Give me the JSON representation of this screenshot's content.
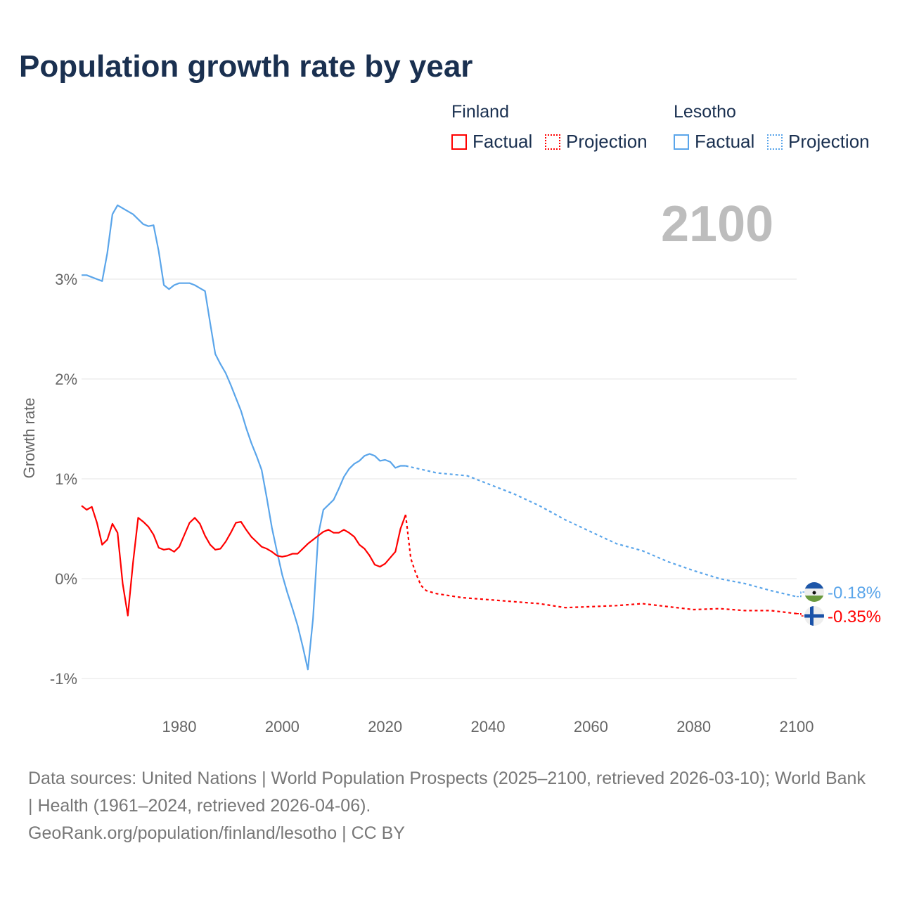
{
  "title": "Population growth rate by year",
  "legend": {
    "groups": [
      {
        "name": "Finland",
        "color": "#ff0000",
        "items": [
          "Factual",
          "Projection"
        ]
      },
      {
        "name": "Lesotho",
        "color": "#5aa5ea",
        "items": [
          "Factual",
          "Projection"
        ]
      }
    ]
  },
  "current_year": "2100",
  "end_labels": {
    "lesotho": "-0.18%",
    "finland": "-0.35%"
  },
  "chart_data": {
    "type": "line",
    "title": "Population growth rate by year",
    "xlabel": "",
    "ylabel": "Growth rate",
    "xlim": [
      1961,
      2100
    ],
    "ylim": [
      -1.3,
      3.9
    ],
    "x_ticks": [
      1980,
      2000,
      2020,
      2040,
      2060,
      2080,
      2100
    ],
    "x_tick_labels": [
      "1980",
      "2000",
      "2020",
      "2040",
      "2060",
      "2080",
      "2100"
    ],
    "y_ticks": [
      -1,
      0,
      1,
      2,
      3
    ],
    "y_tick_labels": [
      "-1%",
      "0%",
      "1%",
      "2%",
      "3%"
    ],
    "grid": true,
    "legend_position": "top-right",
    "series": [
      {
        "name": "Lesotho Factual",
        "color": "#5aa5ea",
        "style": "solid",
        "x_start": 1961,
        "values": [
          3.04,
          3.04,
          3.02,
          3.0,
          2.98,
          3.26,
          3.65,
          3.74,
          3.71,
          3.68,
          3.65,
          3.6,
          3.55,
          3.53,
          3.54,
          3.28,
          2.94,
          2.9,
          2.94,
          2.96,
          2.96,
          2.96,
          2.94,
          2.91,
          2.88,
          2.56,
          2.25,
          2.15,
          2.06,
          1.94,
          1.81,
          1.68,
          1.51,
          1.36,
          1.23,
          1.09,
          0.81,
          0.51,
          0.27,
          0.04,
          -0.14,
          -0.3,
          -0.47,
          -0.68,
          -0.91,
          -0.4,
          0.44,
          0.69,
          0.74,
          0.79,
          0.9,
          1.02,
          1.1,
          1.15,
          1.18,
          1.23,
          1.25,
          1.23,
          1.18,
          1.19,
          1.17,
          1.11,
          1.13,
          1.13
        ]
      },
      {
        "name": "Lesotho Projection",
        "color": "#5aa5ea",
        "style": "dotted",
        "x": [
          2024,
          2030,
          2036,
          2040,
          2045,
          2050,
          2055,
          2060,
          2065,
          2070,
          2075,
          2080,
          2085,
          2090,
          2095,
          2100
        ],
        "values": [
          1.13,
          1.06,
          1.03,
          0.95,
          0.85,
          0.73,
          0.59,
          0.47,
          0.35,
          0.28,
          0.17,
          0.08,
          0.0,
          -0.05,
          -0.12,
          -0.18
        ]
      },
      {
        "name": "Finland Factual",
        "color": "#ff0000",
        "style": "solid",
        "x_start": 1961,
        "values": [
          0.73,
          0.69,
          0.72,
          0.56,
          0.34,
          0.39,
          0.55,
          0.46,
          -0.05,
          -0.37,
          0.16,
          0.61,
          0.57,
          0.52,
          0.44,
          0.31,
          0.29,
          0.3,
          0.27,
          0.32,
          0.44,
          0.56,
          0.61,
          0.55,
          0.43,
          0.34,
          0.29,
          0.3,
          0.37,
          0.46,
          0.56,
          0.57,
          0.49,
          0.42,
          0.37,
          0.32,
          0.3,
          0.27,
          0.23,
          0.22,
          0.23,
          0.25,
          0.25,
          0.3,
          0.35,
          0.39,
          0.43,
          0.47,
          0.49,
          0.46,
          0.46,
          0.49,
          0.46,
          0.42,
          0.34,
          0.3,
          0.23,
          0.14,
          0.12,
          0.15,
          0.21,
          0.27,
          0.5,
          0.64
        ]
      },
      {
        "name": "Finland Projection",
        "color": "#ff0000",
        "style": "dotted",
        "x": [
          2024,
          2025,
          2026,
          2027,
          2028,
          2030,
          2035,
          2040,
          2045,
          2050,
          2055,
          2060,
          2065,
          2070,
          2075,
          2080,
          2085,
          2090,
          2095,
          2100
        ],
        "values": [
          0.64,
          0.2,
          0.05,
          -0.07,
          -0.12,
          -0.15,
          -0.19,
          -0.21,
          -0.23,
          -0.25,
          -0.29,
          -0.28,
          -0.27,
          -0.25,
          -0.28,
          -0.31,
          -0.3,
          -0.32,
          -0.32,
          -0.35
        ]
      }
    ]
  },
  "footer": {
    "sources": "Data sources: United Nations | World Population Prospects (2025–2100, retrieved 2026-03-10); World Bank | Health (1961–2024, retrieved 2026-04-06).",
    "link": "GeoRank.org/population/finland/lesotho | CC BY"
  }
}
